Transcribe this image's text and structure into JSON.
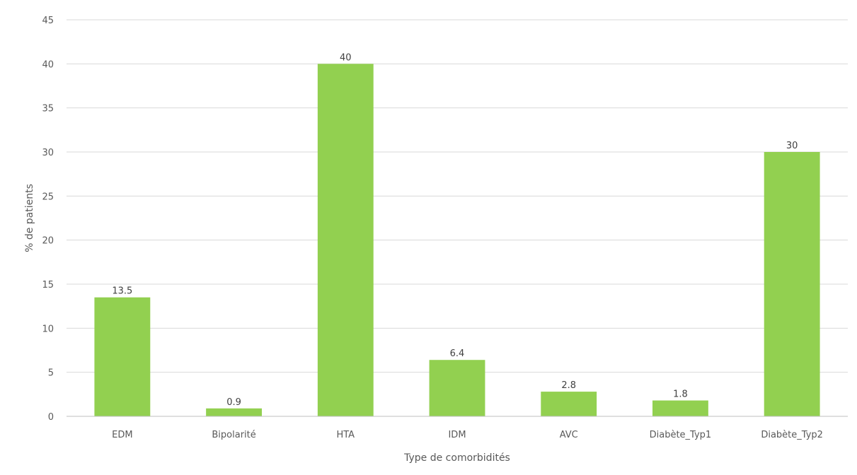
{
  "chart_data": {
    "type": "bar",
    "title": "",
    "xlabel": "Type de comorbidités",
    "ylabel": "% de patients",
    "categories": [
      "EDM",
      "Bipolarité",
      "HTA",
      "IDM",
      "AVC",
      "Diabète_Typ1",
      "Diabète_Typ2"
    ],
    "series": [
      {
        "values": [
          13.5,
          0.9,
          40,
          6.4,
          2.8,
          1.8,
          30
        ],
        "data_labels": [
          "13.5",
          "0.9",
          "40",
          "6.4",
          "2.8",
          "1.8",
          "30"
        ],
        "color": "#92d050"
      }
    ],
    "ylim": [
      0,
      45
    ],
    "yticks": [
      0,
      5,
      10,
      15,
      20,
      25,
      30,
      35,
      40,
      45
    ],
    "grid": true,
    "legend": "none"
  }
}
